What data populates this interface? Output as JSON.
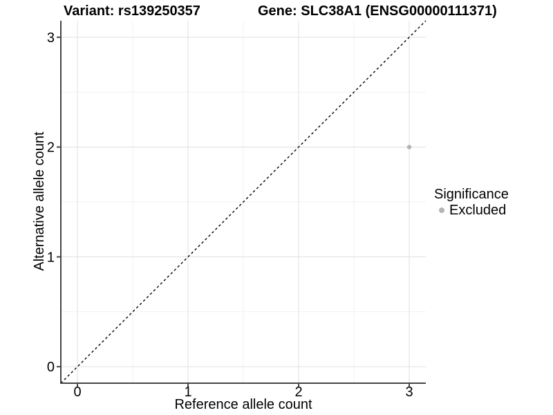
{
  "figure": {
    "title_left": "Variant: rs139250357",
    "title_right": "Gene: SLC38A1 (ENSG00000111371)"
  },
  "axes": {
    "x_label": "Reference allele count",
    "y_label": "Alternative allele count"
  },
  "legend": {
    "title": "Significance",
    "items": [
      {
        "label": "Excluded",
        "marker": "circle-icon",
        "color": "#b4b4b4"
      }
    ]
  },
  "chart_data": {
    "type": "scatter",
    "title": "Variant: rs139250357 | Gene: SLC38A1 (ENSG00000111371)",
    "xlabel": "Reference allele count",
    "ylabel": "Alternative allele count",
    "xlim": [
      -0.15,
      3.15
    ],
    "ylim": [
      -0.15,
      3.15
    ],
    "x_ticks": [
      0,
      1,
      2,
      3
    ],
    "y_ticks": [
      0,
      1,
      2,
      3
    ],
    "minor_x": [
      0.5,
      1.5,
      2.5
    ],
    "minor_y": [
      0.5,
      1.5,
      2.5
    ],
    "grid": {
      "major": true,
      "minor": true
    },
    "legend_position": "right",
    "series": [
      {
        "name": "Excluded",
        "type": "scatter",
        "color": "#b4b4b4",
        "points": [
          {
            "x": 3,
            "y": 2
          }
        ]
      }
    ],
    "annotations": [
      {
        "type": "abline",
        "slope": 1,
        "intercept": 0,
        "style": "dashed",
        "color": "#000000"
      }
    ]
  },
  "style": {
    "background": "#ffffff",
    "major_grid": "#e4e4e4",
    "minor_grid": "#f1f1f1",
    "axis_line": "#454545",
    "tick_color": "#454545",
    "text_color": "#000000",
    "point_color": "#b4b4b4",
    "dashed_line": "#000000"
  }
}
